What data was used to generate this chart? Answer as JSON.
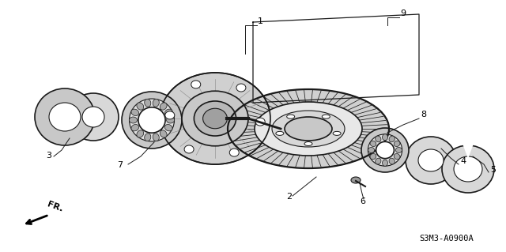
{
  "bg_color": "#ffffff",
  "part_color": "#1a1a1a",
  "diagram_code": "S3M3-A0900A",
  "figsize": [
    6.4,
    3.19
  ],
  "dpi": 100
}
